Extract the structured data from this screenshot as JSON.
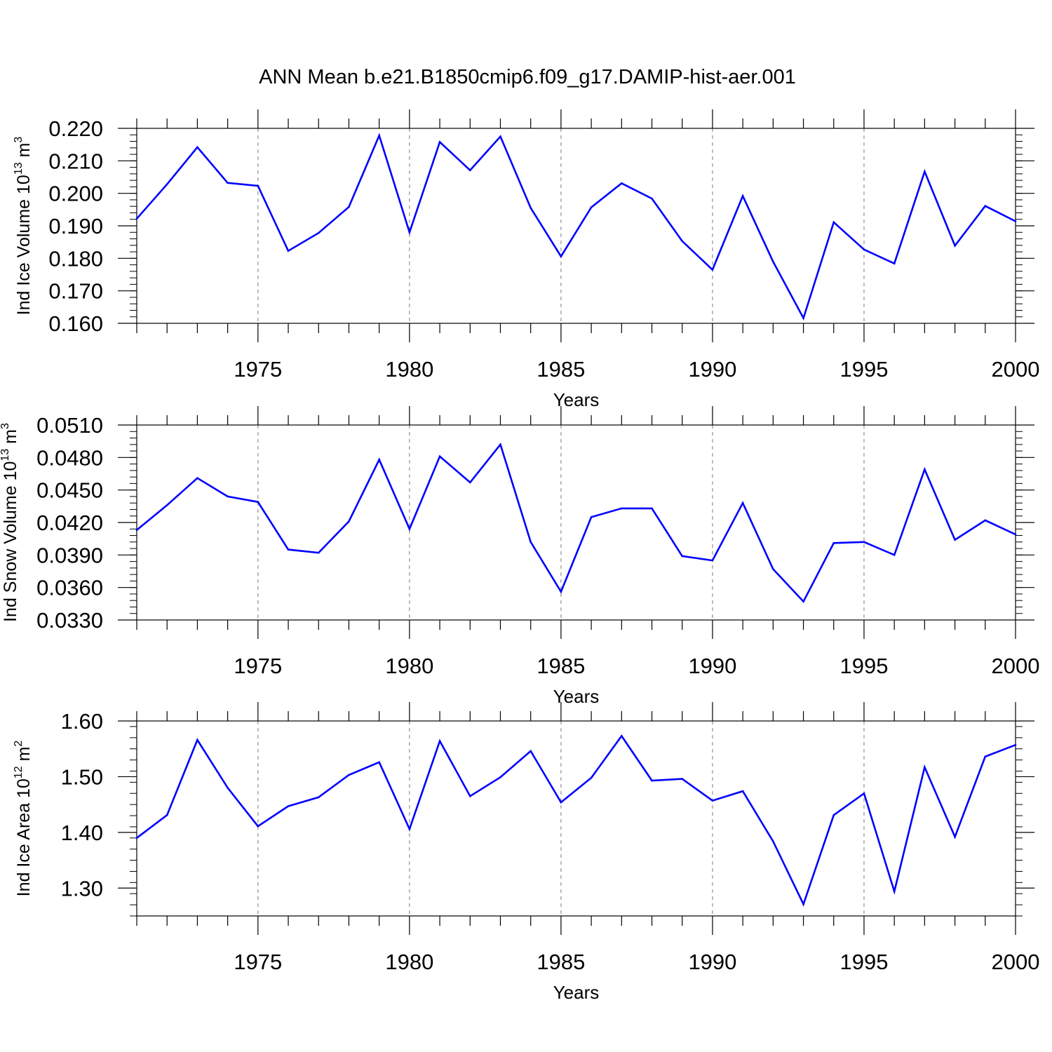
{
  "title": "ANN Mean b.e21.B1850cmip6.f09_g17.DAMIP-hist-aer.001",
  "chart_data": [
    {
      "type": "line",
      "ylabel": "Ind Ice Volume 10",
      "ylabel_exp": "13",
      "ylabel_unit": "m",
      "ylabel_unit_exp": "3",
      "xlabel": "Years",
      "xlim": [
        1971,
        2000
      ],
      "ylim": [
        0.16,
        0.22
      ],
      "yticks": [
        "0.160",
        "0.170",
        "0.180",
        "0.190",
        "0.200",
        "0.210",
        "0.220"
      ],
      "xticks": [
        "1975",
        "1980",
        "1985",
        "1990",
        "1995",
        "2000"
      ],
      "color": "#0000ff",
      "x": [
        1971,
        1972,
        1973,
        1974,
        1975,
        1976,
        1977,
        1978,
        1979,
        1980,
        1981,
        1982,
        1983,
        1984,
        1985,
        1986,
        1987,
        1988,
        1989,
        1990,
        1991,
        1992,
        1993,
        1994,
        1995,
        1996,
        1997,
        1998,
        1999,
        2000
      ],
      "y": [
        0.1922,
        0.2028,
        0.2142,
        0.2032,
        0.2023,
        0.1823,
        0.1878,
        0.1958,
        0.2178,
        0.188,
        0.2158,
        0.2071,
        0.2175,
        0.1955,
        0.1806,
        0.1957,
        0.2031,
        0.1984,
        0.1853,
        0.1765,
        0.1992,
        0.179,
        0.1616,
        0.1911,
        0.1827,
        0.1784,
        0.2067,
        0.1839,
        0.1961,
        0.1914
      ]
    },
    {
      "type": "line",
      "ylabel": "Ind Snow Volume 10",
      "ylabel_exp": "13",
      "ylabel_unit": "m",
      "ylabel_unit_exp": "3",
      "xlabel": "Years",
      "xlim": [
        1971,
        2000
      ],
      "ylim": [
        0.033,
        0.051
      ],
      "yticks": [
        "0.0330",
        "0.0360",
        "0.0390",
        "0.0420",
        "0.0450",
        "0.0480",
        "0.0510"
      ],
      "xticks": [
        "1975",
        "1980",
        "1985",
        "1990",
        "1995",
        "2000"
      ],
      "color": "#0000ff",
      "x": [
        1971,
        1972,
        1973,
        1974,
        1975,
        1976,
        1977,
        1978,
        1979,
        1980,
        1981,
        1982,
        1983,
        1984,
        1985,
        1986,
        1987,
        1988,
        1989,
        1990,
        1991,
        1992,
        1993,
        1994,
        1995,
        1996,
        1997,
        1998,
        1999,
        2000
      ],
      "y": [
        0.0413,
        0.0436,
        0.0461,
        0.0444,
        0.0439,
        0.0395,
        0.0392,
        0.0421,
        0.0478,
        0.0414,
        0.0481,
        0.0457,
        0.0492,
        0.0402,
        0.0356,
        0.0425,
        0.0433,
        0.0433,
        0.0389,
        0.0385,
        0.0438,
        0.0377,
        0.0347,
        0.0401,
        0.0402,
        0.039,
        0.0469,
        0.0404,
        0.0422,
        0.0409
      ]
    },
    {
      "type": "line",
      "ylabel": "Ind Ice Area 10",
      "ylabel_exp": "12",
      "ylabel_unit": "m",
      "ylabel_unit_exp": "2",
      "xlabel": "Years",
      "xlim": [
        1971,
        2000
      ],
      "ylim": [
        1.25,
        1.6
      ],
      "yticks": [
        "1.30",
        "1.40",
        "1.50",
        "1.60"
      ],
      "xticks": [
        "1975",
        "1980",
        "1985",
        "1990",
        "1995",
        "2000"
      ],
      "color": "#0000ff",
      "x": [
        1971,
        1972,
        1973,
        1974,
        1975,
        1976,
        1977,
        1978,
        1979,
        1980,
        1981,
        1982,
        1983,
        1984,
        1985,
        1986,
        1987,
        1988,
        1989,
        1990,
        1991,
        1992,
        1993,
        1994,
        1995,
        1996,
        1997,
        1998,
        1999,
        2000
      ],
      "y": [
        1.39,
        1.431,
        1.566,
        1.48,
        1.411,
        1.447,
        1.463,
        1.503,
        1.526,
        1.406,
        1.564,
        1.465,
        1.499,
        1.546,
        1.454,
        1.498,
        1.573,
        1.493,
        1.496,
        1.457,
        1.474,
        1.384,
        1.271,
        1.431,
        1.47,
        1.294,
        1.517,
        1.392,
        1.536,
        1.557
      ]
    }
  ]
}
